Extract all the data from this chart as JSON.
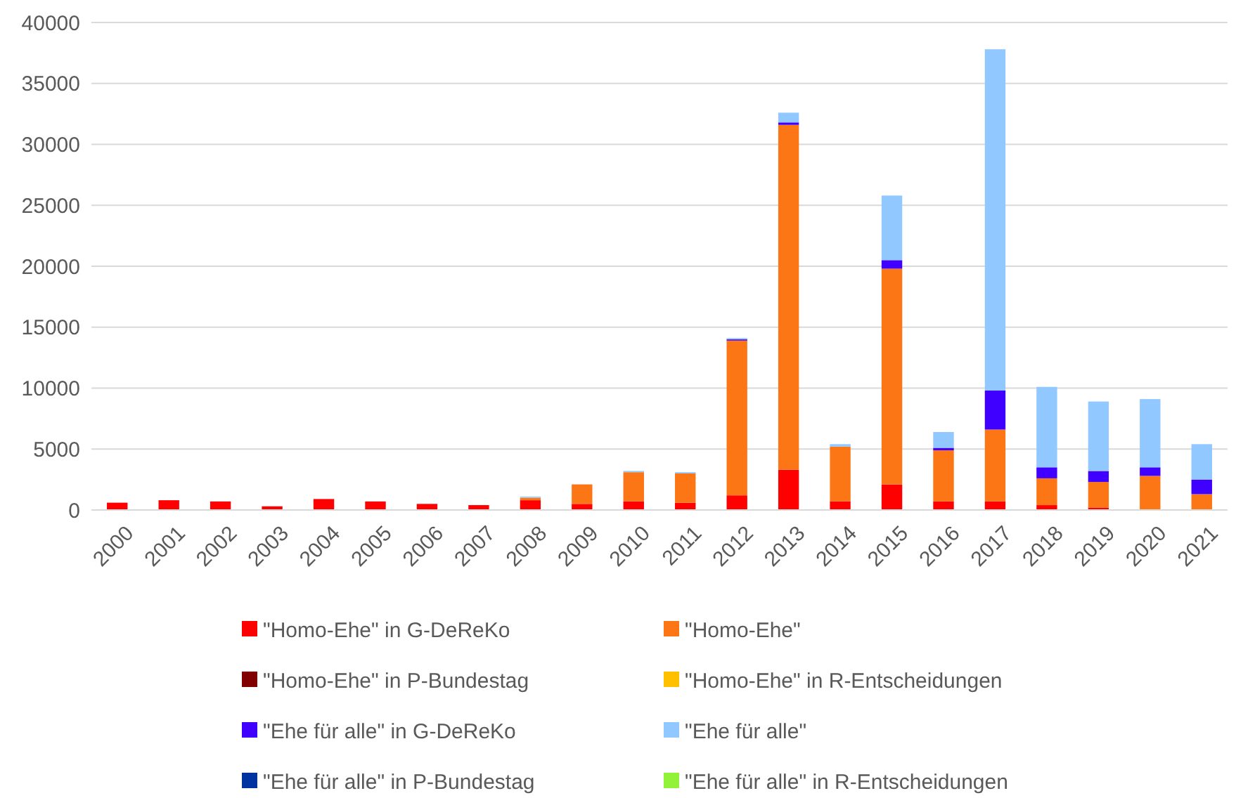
{
  "chart_data": {
    "type": "bar",
    "stacked": true,
    "categories": [
      "2000",
      "2001",
      "2002",
      "2003",
      "2004",
      "2005",
      "2006",
      "2007",
      "2008",
      "2009",
      "2010",
      "2011",
      "2012",
      "2013",
      "2014",
      "2015",
      "2016",
      "2017",
      "2018",
      "2019",
      "2020",
      "2021"
    ],
    "series": [
      {
        "name": "\"Homo-Ehe\" in G-DeReKo",
        "color": "#ff0000",
        "values": [
          600,
          800,
          700,
          300,
          900,
          700,
          500,
          400,
          800,
          500,
          700,
          600,
          1200,
          3300,
          700,
          2100,
          700,
          700,
          400,
          200,
          0,
          0
        ]
      },
      {
        "name": "\"Homo-Ehe\"",
        "color": "#fd7615",
        "values": [
          0,
          0,
          0,
          0,
          0,
          0,
          0,
          0,
          200,
          1600,
          2400,
          2400,
          12700,
          28300,
          4500,
          17700,
          4200,
          5900,
          2200,
          2100,
          2800,
          1300
        ]
      },
      {
        "name": "\"Homo-Ehe\" in P-Bundestag",
        "color": "#800000",
        "values": [
          0,
          0,
          0,
          0,
          0,
          0,
          0,
          0,
          0,
          0,
          0,
          0,
          0,
          0,
          0,
          0,
          0,
          0,
          0,
          0,
          0,
          0
        ]
      },
      {
        "name": "\"Homo-Ehe\" in R-Entscheidungen",
        "color": "#ffc000",
        "values": [
          0,
          0,
          0,
          0,
          0,
          0,
          0,
          0,
          0,
          0,
          0,
          0,
          0,
          0,
          0,
          0,
          0,
          0,
          0,
          0,
          0,
          0
        ]
      },
      {
        "name": "\"Ehe für alle\" in G-DeReKo",
        "color": "#4000ff",
        "values": [
          0,
          0,
          0,
          0,
          0,
          0,
          0,
          0,
          0,
          0,
          0,
          0,
          100,
          200,
          0,
          700,
          200,
          3200,
          900,
          900,
          700,
          1200
        ]
      },
      {
        "name": "\"Ehe für alle\"",
        "color": "#91c8ff",
        "values": [
          0,
          0,
          0,
          0,
          0,
          0,
          0,
          0,
          100,
          0,
          100,
          100,
          100,
          800,
          200,
          5300,
          1300,
          28000,
          6600,
          5700,
          5600,
          2900
        ]
      },
      {
        "name": "\"Ehe für alle\" in P-Bundestag",
        "color": "#0033a0",
        "values": [
          0,
          0,
          0,
          0,
          0,
          0,
          0,
          0,
          0,
          0,
          0,
          0,
          0,
          0,
          0,
          0,
          0,
          0,
          0,
          0,
          0,
          0
        ]
      },
      {
        "name": "\"Ehe für alle\" in R-Entscheidungen",
        "color": "#92f23a",
        "values": [
          0,
          0,
          0,
          0,
          0,
          0,
          0,
          0,
          0,
          0,
          0,
          0,
          0,
          0,
          0,
          0,
          0,
          0,
          0,
          0,
          0,
          0
        ]
      }
    ],
    "ylim": [
      0,
      40000
    ],
    "yticks": [
      0,
      5000,
      10000,
      15000,
      20000,
      25000,
      30000,
      35000,
      40000
    ],
    "grid": "y",
    "legend": "bottom"
  }
}
